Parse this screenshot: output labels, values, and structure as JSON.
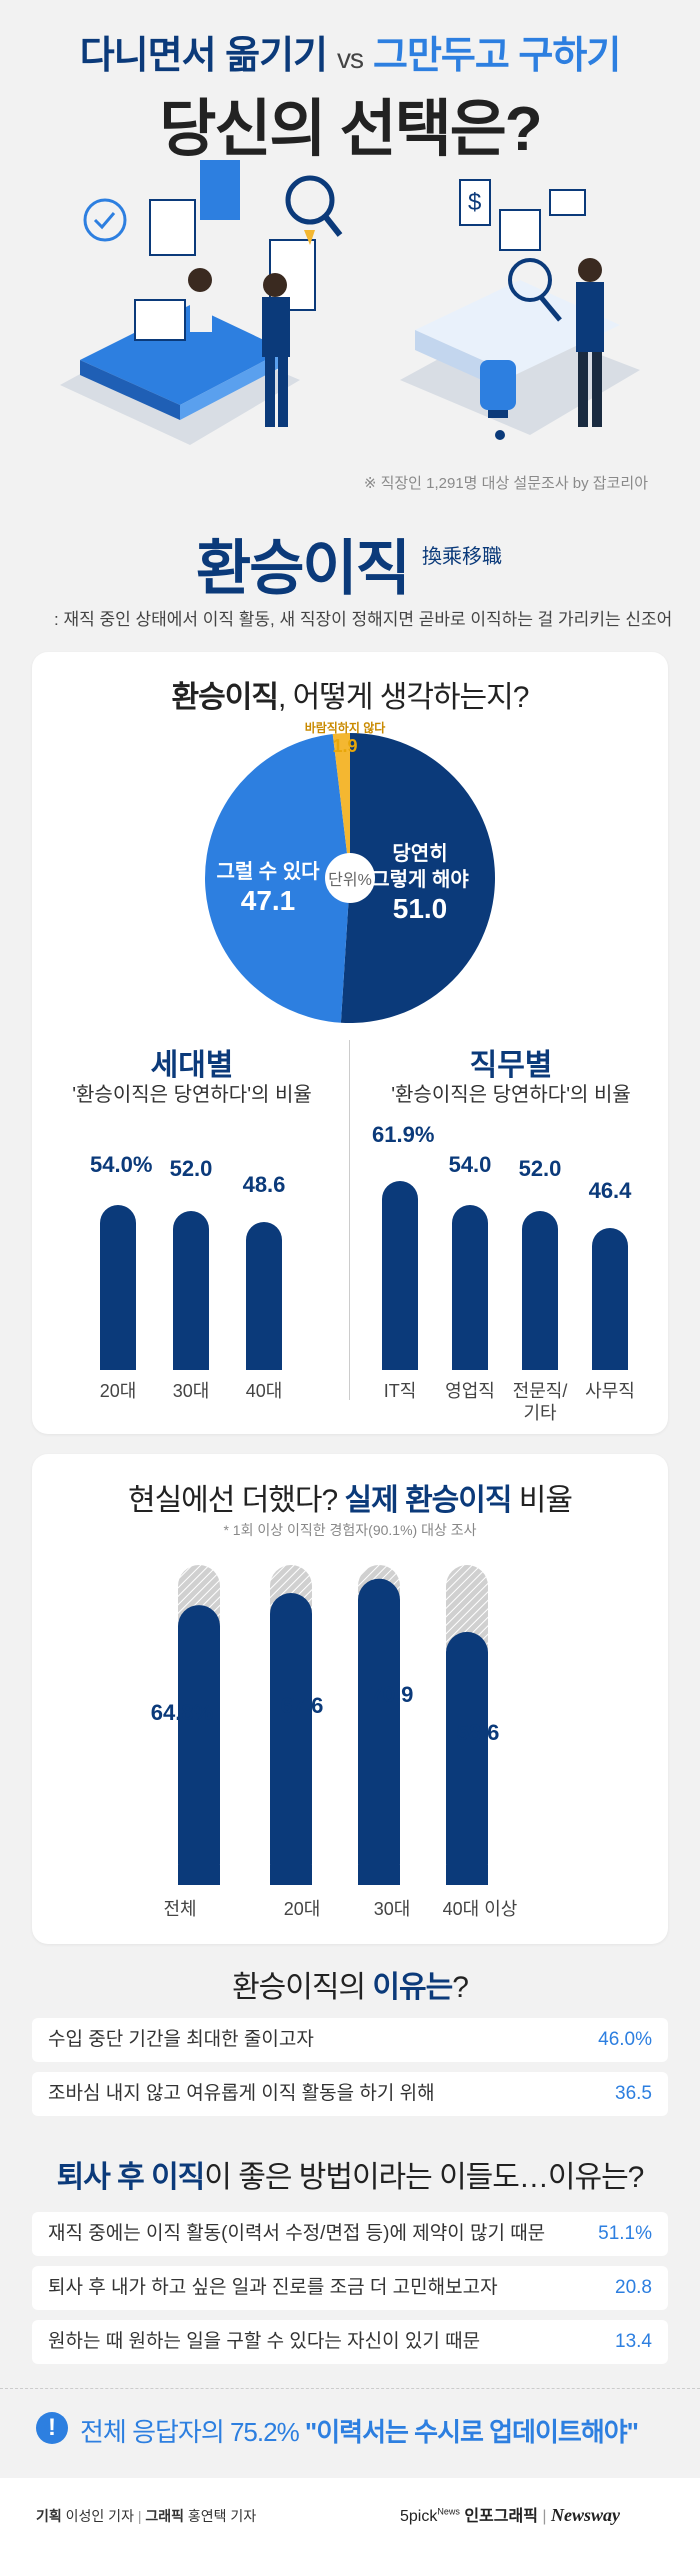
{
  "header": {
    "title_part1": "다니면서 옮기기",
    "vs": "vs",
    "title_part2": "그만두고 구하기",
    "title_line2": "당신의 선택은?",
    "survey_note": "※ 직장인 1,291명 대상 설문조사 by 잡코리아"
  },
  "section": {
    "title": "환승이직",
    "hanja": "換乘移職",
    "description": ": 재직 중인 상태에서 이직 활동, 새 직장이 정해지면 곧바로 이직하는 걸 가리키는 신조어"
  },
  "pie_card": {
    "title_bold": "환승이직",
    "title_rest": ", 어떻게 생각하는지?",
    "unit": "단위%",
    "slices": [
      {
        "label_line1": "당연히",
        "label_line2": "그렇게 해야",
        "value": "51.0"
      },
      {
        "label_line1": "그럴 수 있다",
        "label_line2": "",
        "value": "47.1"
      },
      {
        "label_line1": "바람직하지 않다",
        "label_line2": "",
        "value": "1.9"
      }
    ]
  },
  "generation": {
    "title": "세대별",
    "desc": "'환승이직은 당연하다'의 비율",
    "values": [
      "54.0%",
      "52.0",
      "48.6"
    ],
    "labels": [
      "20대",
      "30대",
      "40대"
    ]
  },
  "job": {
    "title": "직무별",
    "desc": "'환승이직은 당연하다'의 비율",
    "values": [
      "61.9%",
      "54.0",
      "52.0",
      "46.4"
    ],
    "labels": [
      "IT직",
      "영업직",
      "전문직/\n기타",
      "사무직"
    ]
  },
  "actual": {
    "title_rest": "현실에선 더했다? ",
    "title_bold": "실제 환승이직",
    "title_end": " 비율",
    "note": "* 1회 이상 이직한 경험자(90.1%) 대상 조사",
    "values": [
      "64.8%",
      "67.6",
      "70.9",
      "58.6"
    ],
    "labels": [
      "전체",
      "20대",
      "30대",
      "40대 이상"
    ]
  },
  "reasons": {
    "title_rest": "환승이직의 ",
    "title_bold": "이유는",
    "title_end": "?",
    "items": [
      {
        "text": "수입 중단 기간을 최대한 줄이고자",
        "value": "46.0%"
      },
      {
        "text": "조바심 내지 않고 여유롭게 이직 활동을 하기 위해",
        "value": "36.5"
      }
    ]
  },
  "quit_reasons": {
    "title_bold": "퇴사 후 이직",
    "title_rest": "이 좋은 방법이라는 이들도…이유는?",
    "items": [
      {
        "text": "재직 중에는 이직 활동(이력서 수정/면접 등)에 제약이 많기 때문",
        "value": "51.1%"
      },
      {
        "text": "퇴사 후 내가 하고 싶은 일과 진로를 조금 더 고민해보고자",
        "value": "20.8"
      },
      {
        "text": "원하는 때 원하는 일을 구할 수 있다는 자신이 있기 때문",
        "value": "13.4"
      }
    ]
  },
  "bottom": {
    "text_rest": "전체 응답자의 75.2% ",
    "text_bold": "\"이력서는 수시로 업데이트해야\""
  },
  "footer": {
    "plan_label": "기획",
    "plan_name": "이성인 기자",
    "graphic_label": "그래픽",
    "graphic_name": "홍연택 기자",
    "brand1": "5pick",
    "brand1_sup": "News",
    "brand2": "인포그래픽",
    "brand3": "Newsway"
  },
  "chart_data": [
    {
      "type": "pie",
      "title": "환승이직, 어떻게 생각하는지?",
      "unit": "%",
      "categories": [
        "당연히 그렇게 해야",
        "그럴 수 있다",
        "바람직하지 않다"
      ],
      "values": [
        51.0,
        47.1,
        1.9
      ]
    },
    {
      "type": "bar",
      "title": "세대별 '환승이직은 당연하다'의 비율",
      "categories": [
        "20대",
        "30대",
        "40대"
      ],
      "values": [
        54.0,
        52.0,
        48.6
      ]
    },
    {
      "type": "bar",
      "title": "직무별 '환승이직은 당연하다'의 비율",
      "categories": [
        "IT직",
        "영업직",
        "전문직/기타",
        "사무직"
      ],
      "values": [
        61.9,
        54.0,
        52.0,
        46.4
      ]
    },
    {
      "type": "bar",
      "title": "현실에선 더했다? 실제 환승이직 비율",
      "categories": [
        "전체",
        "20대",
        "30대",
        "40대 이상"
      ],
      "values": [
        64.8,
        67.6,
        70.9,
        58.6
      ]
    },
    {
      "type": "bar",
      "title": "환승이직의 이유는?",
      "categories": [
        "수입 중단 기간을 최대한 줄이고자",
        "조바심 내지 않고 여유롭게 이직 활동을 하기 위해"
      ],
      "values": [
        46.0,
        36.5
      ]
    },
    {
      "type": "bar",
      "title": "퇴사 후 이직이 좋은 방법이라는 이들도…이유는?",
      "categories": [
        "재직 중에는 이직 활동(이력서 수정/면접 등)에 제약이 많기 때문",
        "퇴사 후 내가 하고 싶은 일과 진로를 조금 더 고민해보고자",
        "원하는 때 원하는 일을 구할 수 있다는 자신이 있기 때문"
      ],
      "values": [
        51.1,
        20.8,
        13.4
      ]
    }
  ]
}
